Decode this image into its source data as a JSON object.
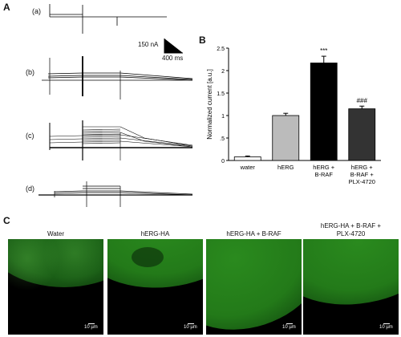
{
  "panel_a": {
    "letter": "A",
    "traces": [
      {
        "label": "(a)"
      },
      {
        "label": "(b)"
      },
      {
        "label": "(c)"
      },
      {
        "label": "(d)"
      }
    ],
    "scale_current": "150 nA",
    "scale_time": "400 ms"
  },
  "panel_b": {
    "letter": "B",
    "sig_high": "***",
    "sig_blocked": "###"
  },
  "chart_data": {
    "type": "bar",
    "ylabel": "Normalized current [a.u.]",
    "ylim": [
      0,
      2.5
    ],
    "yticks": [
      "0",
      ".5",
      "1",
      "1.5",
      "2",
      "2.5"
    ],
    "categories": [
      "water",
      "hERG",
      "hERG + B-RAF",
      "hERG + B-RAF + PLX-4720"
    ],
    "category_lines": [
      [
        "water"
      ],
      [
        "hERG"
      ],
      [
        "hERG +",
        "B-RAF"
      ],
      [
        "hERG +",
        "B-RAF +",
        "PLX-4720"
      ]
    ],
    "values": [
      0.08,
      1.0,
      2.17,
      1.15
    ],
    "errors": [
      0.02,
      0.05,
      0.15,
      0.06
    ],
    "colors": [
      "#ffffff",
      "#bbbbbb",
      "#000000",
      "#333333"
    ]
  },
  "panel_c": {
    "letter": "C",
    "images": [
      {
        "title_lines": [
          "Water"
        ],
        "scale": "10 µm"
      },
      {
        "title_lines": [
          "hERG-HA"
        ],
        "scale": "10 µm"
      },
      {
        "title_lines": [
          "hERG-HA + B-RAF"
        ],
        "scale": "10 µm"
      },
      {
        "title_lines": [
          "hERG-HA + B-RAF +",
          "PLX-4720"
        ],
        "scale": "10 µm"
      }
    ]
  }
}
